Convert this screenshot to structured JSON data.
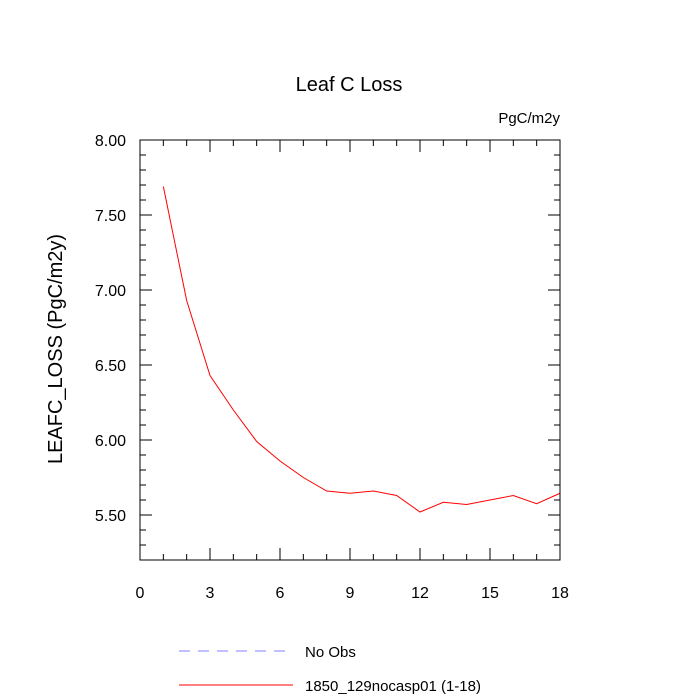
{
  "chart_data": {
    "type": "line",
    "title": "Leaf C Loss",
    "units_label": "PgC/m2y",
    "xlabel": "",
    "ylabel": "LEAFC_LOSS  (PgC/m2y)",
    "xlim": [
      0,
      18
    ],
    "ylim": [
      5.2,
      8.0
    ],
    "x_ticks": [
      0,
      3,
      6,
      9,
      12,
      15,
      18
    ],
    "x_tick_labels": [
      "0",
      "3",
      "6",
      "9",
      "12",
      "15",
      "18"
    ],
    "y_ticks": [
      5.5,
      6.0,
      6.5,
      7.0,
      7.5,
      8.0
    ],
    "y_tick_labels": [
      "5.50",
      "6.00",
      "6.50",
      "7.00",
      "7.50",
      "8.00"
    ],
    "legend_placement": "bottom",
    "series": [
      {
        "name": "No Obs",
        "color": "#8080ff",
        "dash": "dashed",
        "x": [],
        "values": []
      },
      {
        "name": "1850_129nocasp01 (1-18)",
        "color": "#ff0000",
        "dash": "solid",
        "x": [
          1,
          2,
          3,
          4,
          5,
          6,
          7,
          8,
          9,
          10,
          11,
          12,
          13,
          14,
          15,
          16,
          17,
          18
        ],
        "values": [
          7.69,
          6.93,
          6.43,
          6.2,
          5.99,
          5.86,
          5.75,
          5.66,
          5.645,
          5.66,
          5.63,
          5.52,
          5.585,
          5.57,
          5.6,
          5.63,
          5.575,
          5.645
        ]
      }
    ]
  }
}
